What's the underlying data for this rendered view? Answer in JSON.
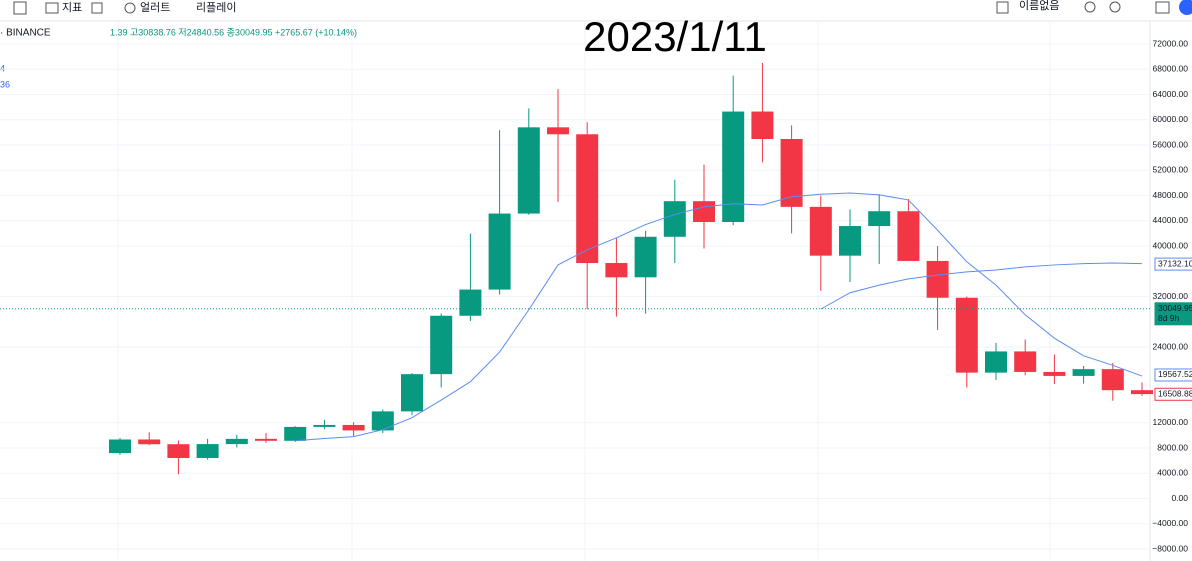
{
  "toolbar": {
    "indicators": "지표",
    "alert": "얼러트",
    "replay": "리플레이",
    "layout_name": "이름없음"
  },
  "chart_data": {
    "type": "candlestick",
    "title": "2023/1/11",
    "symbol": "· BINANCE",
    "ohlc_text": "1.39 고30838.76 저24840.56 종30049.95 +2765.67 (+10.14%)",
    "indicator_labels": [
      "4",
      "36"
    ],
    "up_color": "#089981",
    "down_color": "#f23645",
    "open": [
      7195,
      9350,
      8600,
      6420,
      8620,
      9450,
      9140,
      11340,
      11650,
      10780,
      13800,
      19700,
      28950,
      33100,
      45140,
      58800,
      57700,
      37300,
      35040,
      41460,
      47100,
      43800,
      61300,
      56950,
      46200,
      38470,
      43160,
      45510,
      37630,
      31800,
      19940,
      23300,
      20050,
      19420,
      20490,
      17160
    ],
    "high": [
      9578,
      10500,
      9190,
      9460,
      10070,
      10380,
      11450,
      12470,
      12080,
      14100,
      19880,
      29300,
      41950,
      58350,
      61800,
      64850,
      59600,
      41300,
      42400,
      50500,
      52900,
      67000,
      69000,
      59100,
      47990,
      45800,
      48200,
      47450,
      40000,
      31990,
      24650,
      25200,
      22800,
      20990,
      21480,
      18400
    ],
    "low": [
      6914,
      8450,
      3850,
      6150,
      8100,
      8830,
      8960,
      10950,
      9880,
      10370,
      13200,
      17600,
      28130,
      32300,
      44950,
      47000,
      30000,
      28800,
      29280,
      37300,
      39600,
      43300,
      53250,
      42000,
      32900,
      34300,
      37150,
      37700,
      26700,
      17600,
      18780,
      19520,
      18150,
      18200,
      15480,
      16260
    ],
    "close": [
      9350,
      8600,
      6420,
      8620,
      9450,
      9140,
      11340,
      11650,
      10780,
      13800,
      19700,
      28950,
      33100,
      45140,
      58800,
      57700,
      37300,
      35040,
      41460,
      47100,
      43800,
      61300,
      56950,
      46200,
      38470,
      43160,
      45510,
      37630,
      31800,
      19940,
      23300,
      20050,
      19420,
      20490,
      17160,
      16540
    ],
    "series": [
      {
        "color": "#5b8def",
        "values": [
          null,
          null,
          null,
          null,
          null,
          null,
          9150,
          9500,
          9800,
          10900,
          12800,
          15600,
          18500,
          23200,
          29900,
          37000,
          39400,
          41300,
          43400,
          45000,
          46200,
          46700,
          46500,
          47800,
          48200,
          48400,
          48100,
          47300,
          42500,
          37500,
          33800,
          29100,
          25400,
          22600,
          21100,
          19400
        ]
      },
      {
        "color": "#5b8def",
        "values": [
          null,
          null,
          null,
          null,
          null,
          null,
          null,
          null,
          null,
          null,
          null,
          null,
          null,
          null,
          null,
          null,
          null,
          null,
          null,
          null,
          null,
          null,
          null,
          null,
          30000,
          32600,
          33800,
          34800,
          35400,
          35900,
          36200,
          36700,
          37000,
          37200,
          37300,
          37200
        ]
      }
    ],
    "price_labels": [
      {
        "value": 37132.1,
        "label": "37132.10",
        "color": "#5b8def",
        "filled": false
      },
      {
        "value": 30049.95,
        "label": "30049.95",
        "color": "#089981",
        "filled": true
      },
      {
        "value": 19567.52,
        "label": "19567.52",
        "color": "#5b8def",
        "filled": false
      },
      {
        "value": 16508.88,
        "label": "16508.88",
        "color": "#f23645",
        "filled": false
      }
    ],
    "countdown": "8d 9h",
    "ylim": [
      -8000,
      72000
    ],
    "yticks": [
      {
        "value": 72000,
        "label": "72000.00"
      },
      {
        "value": 68000,
        "label": "68000.00"
      },
      {
        "value": 64000,
        "label": "64000.00"
      },
      {
        "value": 60000,
        "label": "60000.00"
      },
      {
        "value": 56000,
        "label": "56000.00"
      },
      {
        "value": 52000,
        "label": "52000.00"
      },
      {
        "value": 48000,
        "label": "48000.00"
      },
      {
        "value": 44000,
        "label": "44000.00"
      },
      {
        "value": 40000,
        "label": "40000.00"
      },
      {
        "value": 32000,
        "label": "32000.00"
      },
      {
        "value": 24000,
        "label": "24000.00"
      },
      {
        "value": 12000,
        "label": "12000.00"
      },
      {
        "value": 8000,
        "label": "8000.00"
      },
      {
        "value": 4000,
        "label": "4000.00"
      },
      {
        "value": 0,
        "label": "0.00"
      },
      {
        "value": -4000,
        "label": "−4000.00"
      },
      {
        "value": -8000,
        "label": "−8000.00"
      }
    ],
    "grid": true
  }
}
